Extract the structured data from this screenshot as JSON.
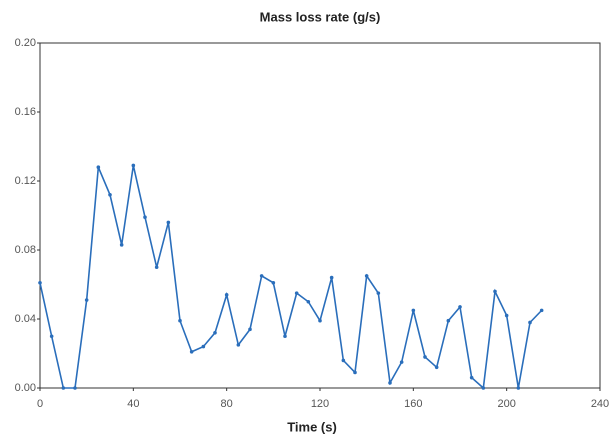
{
  "chart_data": {
    "type": "line",
    "title": "Mass loss rate (g/s)",
    "x_label": "Time (s)",
    "x": [
      0,
      5,
      10,
      15,
      20,
      25,
      30,
      35,
      40,
      45,
      50,
      55,
      60,
      65,
      70,
      75,
      80,
      85,
      90,
      95,
      100,
      105,
      110,
      115,
      120,
      125,
      130,
      135,
      140,
      145,
      150,
      155,
      160,
      165,
      170,
      175,
      180,
      185,
      190,
      195,
      200,
      205,
      210,
      215
    ],
    "series": [
      {
        "name": "Mass loss rate",
        "color": "#2a6ebb",
        "values": [
          0.061,
          0.03,
          0.0,
          0.0,
          0.051,
          0.128,
          0.112,
          0.083,
          0.129,
          0.099,
          0.07,
          0.096,
          0.039,
          0.021,
          0.024,
          0.032,
          0.054,
          0.025,
          0.034,
          0.065,
          0.061,
          0.03,
          0.055,
          0.05,
          0.039,
          0.064,
          0.016,
          0.009,
          0.065,
          0.055,
          0.003,
          0.015,
          0.045,
          0.018,
          0.012,
          0.039,
          0.047,
          0.006,
          0.0,
          0.056,
          0.042,
          0.0,
          0.038,
          0.045
        ]
      }
    ],
    "xlim": [
      0,
      240
    ],
    "xticks": [
      0,
      40,
      80,
      120,
      160,
      200,
      240
    ],
    "ylim": [
      0,
      0.2
    ],
    "yticks": [
      {
        "value": 0,
        "label": "0.00"
      },
      0.04,
      0.08,
      0.12,
      0.16,
      {
        "value": 0.2,
        "label": "0.20"
      }
    ],
    "grid": false
  }
}
